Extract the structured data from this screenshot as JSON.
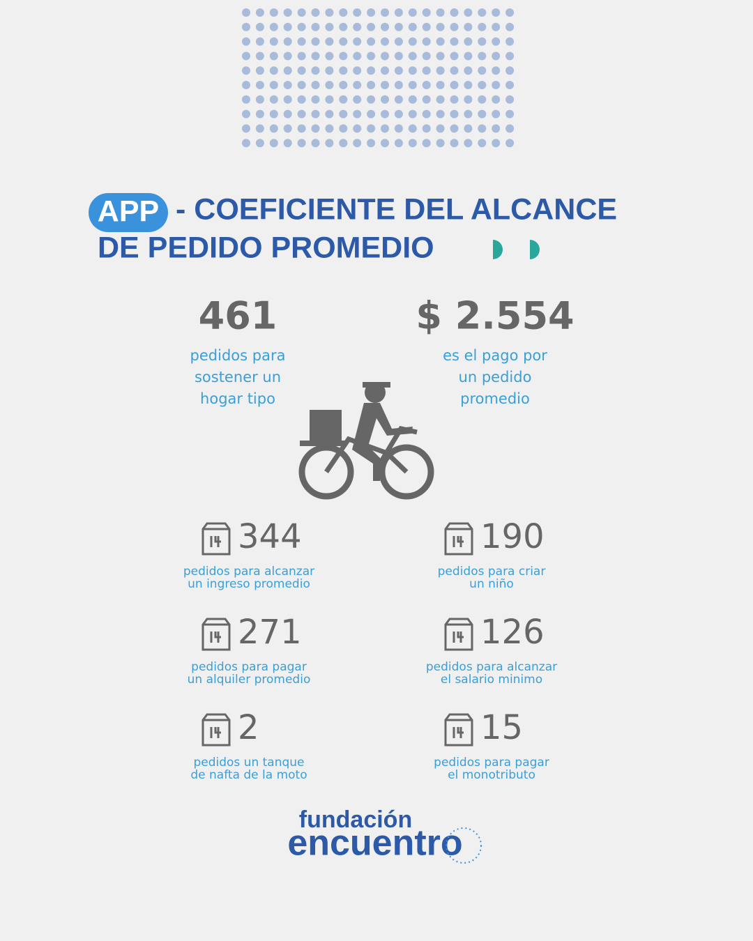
{
  "header": {
    "badge": "APP",
    "title_line1": "- COEFICIENTE DEL ALCANCE",
    "title_line2": "DE PEDIDO PROMEDIO"
  },
  "highlights": [
    {
      "value": "461",
      "lines": [
        "pedidos para",
        "sostener un",
        "hogar tipo"
      ]
    },
    {
      "value": "$ 2.554",
      "lines": [
        "es el pago por",
        "un pedido",
        "promedio"
      ]
    }
  ],
  "stats": [
    {
      "value": "344",
      "lines": [
        "pedidos para alcanzar",
        "un ingreso promedio"
      ]
    },
    {
      "value": "190",
      "lines": [
        "pedidos para criar",
        "un niño"
      ]
    },
    {
      "value": "271",
      "lines": [
        "pedidos para pagar",
        "un alquiler promedio"
      ]
    },
    {
      "value": "126",
      "lines": [
        "pedidos para alcanzar",
        "el salario minimo"
      ]
    },
    {
      "value": "2",
      "lines": [
        "pedidos un tanque",
        "de nafta de la moto"
      ]
    },
    {
      "value": "15",
      "lines": [
        "pedidos para pagar",
        "el monotributo"
      ]
    }
  ],
  "logo": {
    "line1": "fundación",
    "line2": "encuentro"
  }
}
